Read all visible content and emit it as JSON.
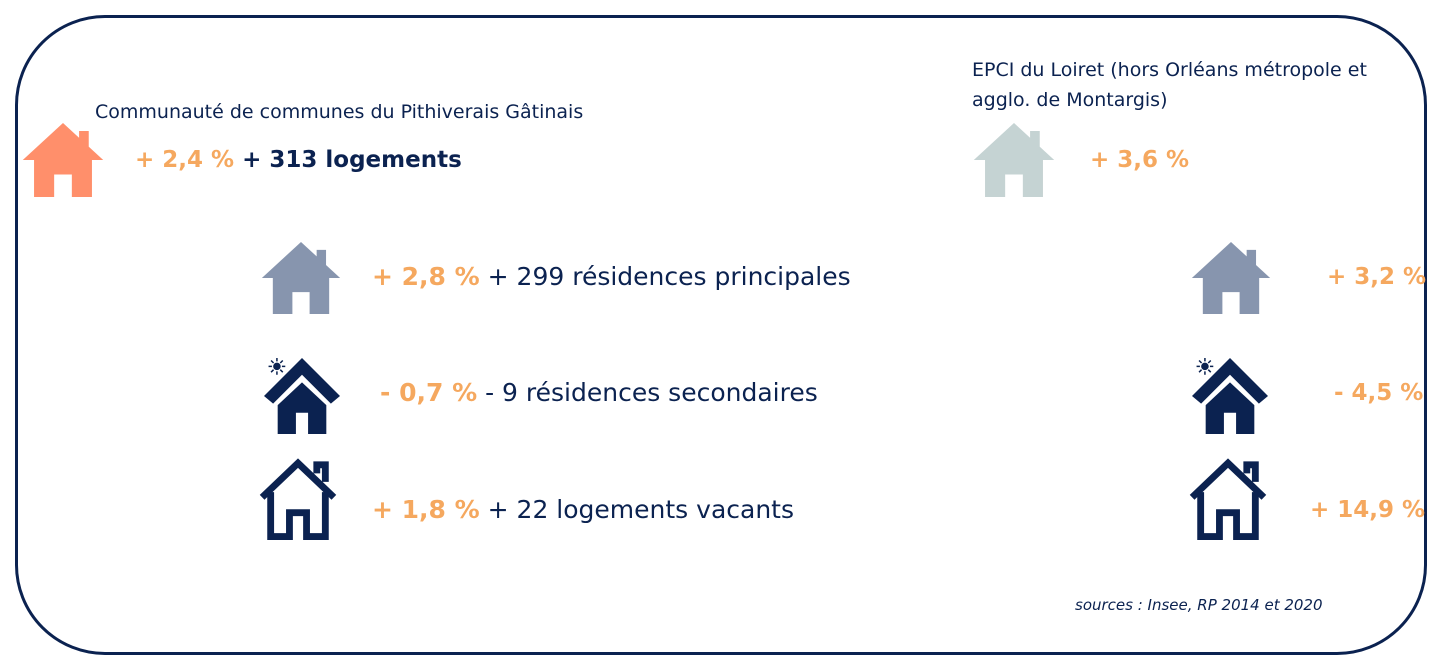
{
  "left": {
    "title": "Communauté de communes du Pithiverais Gâtinais",
    "total": {
      "rate": "+ 2,4 %",
      "count": "+ 313 logements"
    },
    "rows": [
      {
        "rate": "+ 2,8 %",
        "label": "+ 299 résidences principales"
      },
      {
        "rate": "- 0,7 %",
        "label": "- 9 résidences secondaires"
      },
      {
        "rate": "+ 1,8 %",
        "label": "+ 22 logements vacants"
      }
    ]
  },
  "right": {
    "title_lines": [
      "EPCI du Loiret (hors Orléans métropole et",
      "agglo. de Montargis)"
    ],
    "total": {
      "rate": "+ 3,6 %"
    },
    "rows": [
      {
        "rate": "+ 3,2 %"
      },
      {
        "rate": "- 4,5 %"
      },
      {
        "rate": "+ 14,9 %"
      }
    ]
  },
  "source": "sources : Insee, RP 2014 et 2020"
}
